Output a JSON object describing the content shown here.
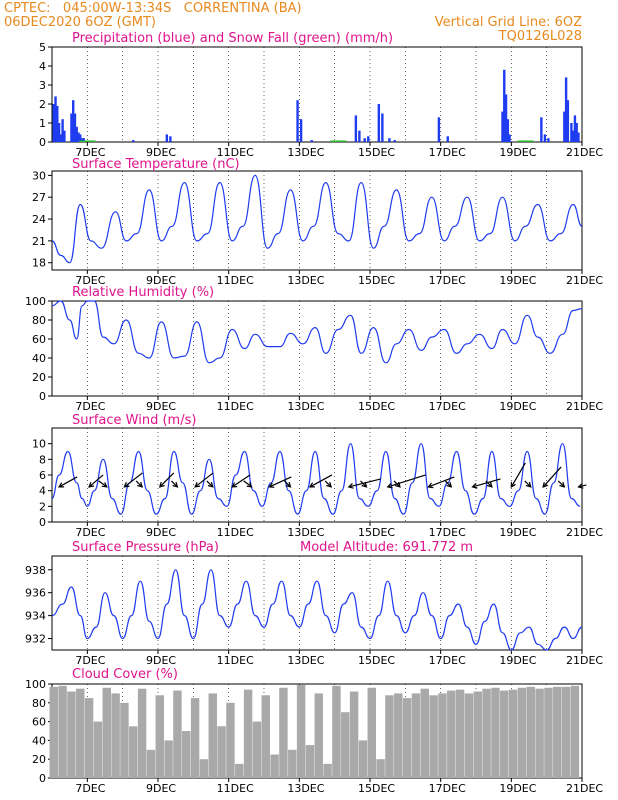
{
  "header": {
    "line1": "CPTEC:   045:00W-13:34S   CORRENTINA (BA)",
    "line2": "06DEC2020 6OZ (GMT)",
    "grid_note": "Vertical Grid Line: 6OZ",
    "code": "TQ0126L028"
  },
  "colors": {
    "header": "#e8891e",
    "title": "#e0148c",
    "series": "#1f3cf0",
    "snow": "#2bb52b",
    "cloud": "#a9a9a9",
    "wind_arrow": "#000000"
  },
  "x_axis": {
    "range_days": [
      6.0,
      21.0
    ],
    "ticks": [
      {
        "day": 7,
        "label": "7DEC"
      },
      {
        "day": 9,
        "label": "9DEC"
      },
      {
        "day": 11,
        "label": "11DEC"
      },
      {
        "day": 13,
        "label": "13DEC"
      },
      {
        "day": 15,
        "label": "15DEC"
      },
      {
        "day": 17,
        "label": "17DEC"
      },
      {
        "day": 19,
        "label": "19DEC"
      },
      {
        "day": 21,
        "label": "21DEC"
      }
    ]
  },
  "chart_data": [
    {
      "id": "precip",
      "type": "bar",
      "title": "Precipitation (blue) and Snow Fall (green) (mm/h)",
      "ylim": [
        0,
        5
      ],
      "yticks": [
        0,
        1,
        2,
        3,
        4,
        5
      ],
      "series": [
        {
          "name": "Precipitation",
          "x": [
            6.05,
            6.1,
            6.15,
            6.2,
            6.25,
            6.3,
            6.35,
            6.55,
            6.6,
            6.65,
            6.7,
            6.75,
            6.8,
            6.85,
            6.9,
            8.3,
            9.25,
            9.35,
            12.95,
            13.05,
            13.35,
            14.6,
            14.7,
            14.85,
            14.95,
            15.25,
            15.35,
            15.55,
            15.7,
            16.95,
            17.2,
            18.75,
            18.8,
            18.85,
            18.9,
            18.95,
            19.85,
            19.95,
            20.05,
            20.5,
            20.55,
            20.6,
            20.7,
            20.75,
            20.8,
            20.85,
            20.9
          ],
          "y": [
            2.0,
            2.4,
            1.9,
            1.0,
            0.4,
            1.2,
            0.6,
            1.5,
            2.2,
            1.5,
            0.8,
            0.5,
            0.4,
            0.2,
            0.2,
            0.1,
            0.4,
            0.3,
            2.2,
            1.2,
            0.1,
            1.4,
            0.6,
            0.2,
            0.3,
            2.0,
            1.5,
            0.2,
            0.1,
            1.3,
            0.3,
            1.6,
            3.8,
            2.5,
            1.2,
            0.4,
            1.3,
            0.4,
            0.2,
            1.6,
            3.4,
            2.2,
            1.0,
            0.6,
            1.4,
            1.0,
            0.5
          ]
        },
        {
          "name": "Snow Fall",
          "x": [
            7.0,
            14.1,
            19.4
          ],
          "y": [
            0.08,
            0.08,
            0.08
          ]
        }
      ]
    },
    {
      "id": "temp",
      "type": "line",
      "title": "Surface Temperature (nC)",
      "ylim": [
        17,
        30.6
      ],
      "yticks": [
        18,
        21,
        24,
        27,
        30
      ],
      "series": [
        {
          "name": "",
          "x": [
            6.0,
            6.25,
            6.5,
            6.8,
            7.1,
            7.4,
            7.8,
            8.1,
            8.4,
            8.75,
            9.1,
            9.4,
            9.75,
            10.1,
            10.4,
            10.75,
            11.1,
            11.4,
            11.75,
            12.1,
            12.4,
            12.75,
            13.1,
            13.4,
            13.75,
            14.1,
            14.4,
            14.75,
            15.1,
            15.4,
            15.75,
            16.1,
            16.4,
            16.75,
            17.1,
            17.4,
            17.75,
            18.1,
            18.4,
            18.75,
            19.1,
            19.4,
            19.75,
            20.1,
            20.4,
            20.75,
            21.0
          ],
          "y": [
            21,
            19,
            18,
            26,
            21,
            20,
            25,
            21,
            22,
            28,
            21,
            23,
            29,
            21,
            22,
            29,
            21,
            23,
            30,
            20,
            22,
            28,
            21,
            23,
            29,
            22,
            21,
            29,
            20,
            23,
            28,
            21,
            22,
            27,
            21,
            23,
            27,
            21,
            22,
            27,
            21,
            23,
            26,
            21,
            22,
            26,
            23
          ]
        }
      ]
    },
    {
      "id": "rh",
      "type": "line",
      "title": "Relative Humidity (%)",
      "ylim": [
        0,
        100
      ],
      "yticks": [
        0,
        20,
        40,
        60,
        80,
        100
      ],
      "series": [
        {
          "name": "",
          "x": [
            6.0,
            6.25,
            6.5,
            6.7,
            6.85,
            7.0,
            7.2,
            7.45,
            7.75,
            8.1,
            8.45,
            8.75,
            9.1,
            9.45,
            9.75,
            10.1,
            10.45,
            10.75,
            11.1,
            11.45,
            11.75,
            12.1,
            12.45,
            12.75,
            13.1,
            13.45,
            13.75,
            14.1,
            14.45,
            14.75,
            15.1,
            15.45,
            15.75,
            16.1,
            16.45,
            16.75,
            17.1,
            17.45,
            17.75,
            18.1,
            18.45,
            18.75,
            19.1,
            19.45,
            19.75,
            20.1,
            20.45,
            20.75,
            21.0
          ],
          "y": [
            95,
            100,
            80,
            60,
            95,
            100,
            100,
            62,
            55,
            80,
            45,
            40,
            78,
            40,
            42,
            78,
            35,
            40,
            70,
            50,
            65,
            52,
            52,
            66,
            55,
            72,
            45,
            70,
            85,
            45,
            72,
            35,
            55,
            70,
            48,
            62,
            70,
            45,
            55,
            65,
            50,
            70,
            55,
            85,
            62,
            45,
            65,
            90,
            92
          ]
        }
      ]
    },
    {
      "id": "wind",
      "type": "line",
      "title": "Surface Wind (m/s)",
      "ylim": [
        0,
        12
      ],
      "yticks": [
        0,
        2,
        4,
        6,
        8,
        10
      ],
      "series": [
        {
          "name": "",
          "x": [
            6.0,
            6.2,
            6.45,
            6.7,
            6.85,
            7.0,
            7.2,
            7.45,
            7.7,
            7.95,
            8.2,
            8.45,
            8.7,
            8.95,
            9.2,
            9.45,
            9.7,
            9.95,
            10.2,
            10.45,
            10.7,
            10.95,
            11.2,
            11.45,
            11.7,
            11.95,
            12.2,
            12.45,
            12.7,
            12.95,
            13.2,
            13.45,
            13.7,
            13.95,
            14.2,
            14.45,
            14.7,
            14.95,
            15.2,
            15.45,
            15.7,
            15.95,
            16.2,
            16.45,
            16.7,
            16.95,
            17.2,
            17.45,
            17.7,
            17.95,
            18.2,
            18.45,
            18.7,
            18.95,
            19.2,
            19.45,
            19.7,
            19.95,
            20.2,
            20.45,
            20.7,
            20.95
          ],
          "y": [
            3,
            6,
            9,
            5,
            3,
            2,
            4,
            8,
            3,
            1,
            5,
            9,
            4,
            1,
            3,
            9,
            5,
            1,
            4,
            8,
            3,
            2,
            6,
            9,
            4,
            2,
            5,
            9,
            4,
            1,
            4,
            9,
            3,
            1,
            4,
            10,
            3,
            2,
            4,
            9,
            3,
            1,
            5,
            10,
            3,
            2,
            5,
            9,
            4,
            1,
            3,
            9,
            3,
            2,
            4,
            9,
            3,
            1,
            5,
            10,
            3,
            2
          ]
        }
      ],
      "wind_arrows": [
        {
          "x": 6.2,
          "dx": 18,
          "dy": -10
        },
        {
          "x": 7.05,
          "dx": 14,
          "dy": -12
        },
        {
          "x": 7.55,
          "dx": -8,
          "dy": -6
        },
        {
          "x": 8.05,
          "dx": 18,
          "dy": -14
        },
        {
          "x": 8.55,
          "dx": -6,
          "dy": -6
        },
        {
          "x": 9.05,
          "dx": 14,
          "dy": -14
        },
        {
          "x": 9.55,
          "dx": -6,
          "dy": -6
        },
        {
          "x": 10.05,
          "dx": 18,
          "dy": -14
        },
        {
          "x": 10.55,
          "dx": -6,
          "dy": -6
        },
        {
          "x": 11.1,
          "dx": 18,
          "dy": -12
        },
        {
          "x": 11.65,
          "dx": -8,
          "dy": -6
        },
        {
          "x": 12.15,
          "dx": 22,
          "dy": -10
        },
        {
          "x": 12.75,
          "dx": -6,
          "dy": -6
        },
        {
          "x": 13.3,
          "dx": 22,
          "dy": -12
        },
        {
          "x": 13.9,
          "dx": -6,
          "dy": -6
        },
        {
          "x": 14.4,
          "dx": 32,
          "dy": -8
        },
        {
          "x": 14.9,
          "dx": -6,
          "dy": -6
        },
        {
          "x": 15.5,
          "dx": 38,
          "dy": -12
        },
        {
          "x": 15.85,
          "dx": -6,
          "dy": -6
        },
        {
          "x": 16.65,
          "dx": 26,
          "dy": -10
        },
        {
          "x": 17.3,
          "dx": -6,
          "dy": -6
        },
        {
          "x": 17.9,
          "dx": 28,
          "dy": -8
        },
        {
          "x": 18.45,
          "dx": -6,
          "dy": -6
        },
        {
          "x": 19.0,
          "dx": 14,
          "dy": -24
        },
        {
          "x": 19.55,
          "dx": -6,
          "dy": -6
        },
        {
          "x": 19.9,
          "dx": 18,
          "dy": -20
        },
        {
          "x": 20.5,
          "dx": -6,
          "dy": -6
        },
        {
          "x": 20.9,
          "dx": 8,
          "dy": -2
        }
      ]
    },
    {
      "id": "pres",
      "type": "line",
      "title": "Surface Pressure (hPa)",
      "annotation": "Model Altitude: 691.772 m",
      "ylim": [
        931.0,
        939.2
      ],
      "yticks": [
        932,
        934,
        936,
        938
      ],
      "series": [
        {
          "name": "",
          "x": [
            6.0,
            6.3,
            6.55,
            6.8,
            7.0,
            7.25,
            7.5,
            7.75,
            8.0,
            8.25,
            8.5,
            8.75,
            9.0,
            9.25,
            9.5,
            9.75,
            10.0,
            10.25,
            10.5,
            10.75,
            11.0,
            11.25,
            11.5,
            11.75,
            12.0,
            12.25,
            12.5,
            12.75,
            13.0,
            13.25,
            13.5,
            13.75,
            14.0,
            14.25,
            14.5,
            14.75,
            15.0,
            15.25,
            15.5,
            15.75,
            16.0,
            16.25,
            16.5,
            16.75,
            17.0,
            17.25,
            17.5,
            17.75,
            18.0,
            18.25,
            18.5,
            18.75,
            19.0,
            19.25,
            19.5,
            19.75,
            20.0,
            20.25,
            20.5,
            20.75,
            21.0
          ],
          "y": [
            934,
            935,
            936.5,
            934,
            932,
            933,
            936,
            934,
            932,
            934,
            937,
            933.5,
            932,
            935,
            938,
            934,
            932,
            935,
            938,
            934,
            933,
            935,
            937,
            934,
            933,
            935,
            937,
            934,
            933,
            935,
            937,
            934,
            932.5,
            935,
            936,
            933,
            932,
            934,
            937,
            934,
            932.5,
            934,
            936,
            934,
            932,
            934,
            935,
            933,
            931.5,
            933.5,
            935,
            932.5,
            931,
            932.5,
            933,
            931.5,
            931,
            932,
            933,
            932,
            933
          ]
        }
      ]
    },
    {
      "id": "cloud",
      "type": "bar",
      "title": "Cloud Cover (%)",
      "ylim": [
        0,
        100
      ],
      "yticks": [
        0,
        20,
        40,
        60,
        80,
        100
      ],
      "series": [
        {
          "name": "",
          "x": [
            6.05,
            6.3,
            6.55,
            6.8,
            7.05,
            7.3,
            7.55,
            7.8,
            8.05,
            8.3,
            8.55,
            8.8,
            9.05,
            9.3,
            9.55,
            9.8,
            10.05,
            10.3,
            10.55,
            10.8,
            11.05,
            11.3,
            11.55,
            11.8,
            12.05,
            12.3,
            12.55,
            12.8,
            13.05,
            13.3,
            13.55,
            13.8,
            14.05,
            14.3,
            14.55,
            14.8,
            15.05,
            15.3,
            15.55,
            15.8,
            16.05,
            16.3,
            16.55,
            16.8,
            17.05,
            17.3,
            17.55,
            17.8,
            18.05,
            18.3,
            18.55,
            18.8,
            19.05,
            19.3,
            19.55,
            19.8,
            20.05,
            20.3,
            20.55,
            20.8
          ],
          "y": [
            97,
            98,
            92,
            95,
            85,
            60,
            96,
            90,
            80,
            55,
            95,
            30,
            88,
            40,
            93,
            50,
            85,
            20,
            90,
            55,
            80,
            15,
            94,
            60,
            88,
            25,
            96,
            30,
            99,
            35,
            90,
            15,
            98,
            70,
            92,
            40,
            96,
            20,
            88,
            90,
            85,
            90,
            95,
            88,
            90,
            93,
            94,
            90,
            92,
            95,
            96,
            93,
            94,
            96,
            97,
            95,
            96,
            97,
            97,
            98
          ]
        }
      ]
    }
  ]
}
